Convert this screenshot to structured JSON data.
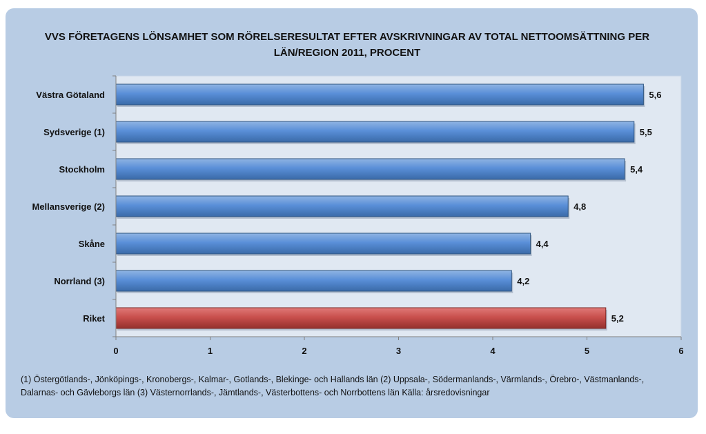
{
  "title_line1": "VVS FÖRETAGENS LÖNSAMHET SOM RÖRELSERESULTAT EFTER AVSKRIVNINGAR AV TOTAL NETTOOMSÄTTNING PER",
  "title_line2": "LÄN/REGION 2011, PROCENT",
  "footnote_line1": "(1) Östergötlands-, Jönköpings-, Kronobergs-, Kalmar-, Gotlands-, Blekinge- och Hallands län (2) Uppsala-, Södermanlands-, Värmlands-, Örebro-, Västmanlands-,",
  "footnote_line2": "Dalarnas- och Gävleborgs län (3) Västernorrlands-, Jämtlands-, Västerbottens- och Norrbottens län Källa: årsredovisningar",
  "colors": {
    "bar": "#4f81bd",
    "highlight": "#c0504d",
    "background": "#b8cce4",
    "plot": "#e0e8f2"
  },
  "chart_data": {
    "type": "bar",
    "orientation": "horizontal",
    "categories": [
      "Västra Götaland",
      "Sydsverige (1)",
      "Stockholm",
      "Mellansverige (2)",
      "Skåne",
      "Norrland (3)",
      "Riket"
    ],
    "values": [
      5.6,
      5.5,
      5.4,
      4.8,
      4.4,
      4.2,
      5.2
    ],
    "data_labels": [
      "5,6",
      "5,5",
      "5,4",
      "4,8",
      "4,4",
      "4,2",
      "5,2"
    ],
    "highlight_category": "Riket",
    "xlim": [
      0,
      6
    ],
    "xticks": [
      "0",
      "1",
      "2",
      "3",
      "4",
      "5",
      "6"
    ],
    "grid": false,
    "legend": "none"
  }
}
